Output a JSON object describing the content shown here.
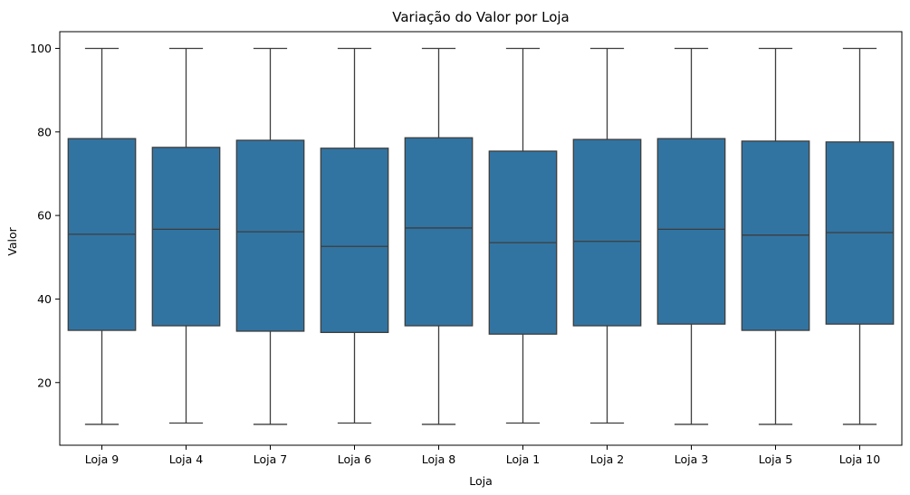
{
  "chart_data": {
    "type": "box",
    "title": "Variação do Valor por Loja",
    "xlabel": "Loja",
    "ylabel": "Valor",
    "ylim": [
      5,
      104
    ],
    "yticks": [
      20,
      40,
      60,
      80,
      100
    ],
    "grid": false,
    "legend": "none",
    "box_color": "#3274a1",
    "line_color": "#3d3d3d",
    "categories": [
      "Loja 9",
      "Loja 4",
      "Loja 7",
      "Loja 6",
      "Loja 8",
      "Loja 1",
      "Loja 2",
      "Loja 3",
      "Loja 5",
      "Loja 10"
    ],
    "boxes": [
      {
        "min": 10.0,
        "q1": 32.5,
        "median": 55.5,
        "q3": 78.4,
        "max": 100
      },
      {
        "min": 10.3,
        "q1": 33.6,
        "median": 56.7,
        "q3": 76.3,
        "max": 100
      },
      {
        "min": 10.0,
        "q1": 32.3,
        "median": 56.1,
        "q3": 78.0,
        "max": 100
      },
      {
        "min": 10.3,
        "q1": 32.0,
        "median": 52.6,
        "q3": 76.1,
        "max": 100
      },
      {
        "min": 10.0,
        "q1": 33.6,
        "median": 57.0,
        "q3": 78.6,
        "max": 100
      },
      {
        "min": 10.3,
        "q1": 31.6,
        "median": 53.5,
        "q3": 75.4,
        "max": 100
      },
      {
        "min": 10.3,
        "q1": 33.6,
        "median": 53.8,
        "q3": 78.2,
        "max": 100
      },
      {
        "min": 10.0,
        "q1": 34.0,
        "median": 56.7,
        "q3": 78.4,
        "max": 100
      },
      {
        "min": 10.0,
        "q1": 32.5,
        "median": 55.3,
        "q3": 77.8,
        "max": 100
      },
      {
        "min": 10.0,
        "q1": 34.0,
        "median": 55.9,
        "q3": 77.6,
        "max": 100
      }
    ]
  }
}
